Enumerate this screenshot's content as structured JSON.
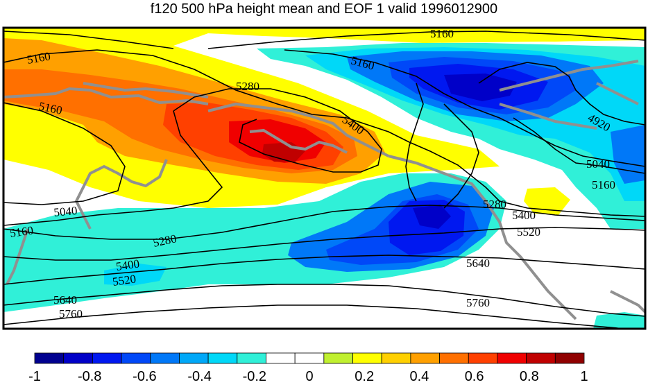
{
  "title": "f120 500 hPa height mean and EOF 1 valid 1996012900",
  "contour_labels": [
    "5160",
    "5160",
    "5160",
    "5160",
    "5160",
    "5160",
    "5280",
    "5280",
    "5280",
    "5400",
    "5400",
    "5400",
    "5520",
    "5520",
    "5640",
    "5640",
    "4920",
    "5040",
    "5040",
    "5760",
    "5760"
  ],
  "colorbar": {
    "ticks": [
      "-1",
      "-0.8",
      "-0.6",
      "-0.4",
      "-0.2",
      "0",
      "0.2",
      "0.4",
      "0.6",
      "0.8",
      "1"
    ],
    "colors": [
      "#00008f",
      "#0000c8",
      "#0018f0",
      "#0048f8",
      "#0078f8",
      "#00a8f8",
      "#00d8f8",
      "#30f0d8",
      "#ffffff",
      "#ffffff",
      "#c0f030",
      "#ffff00",
      "#ffd000",
      "#ffa000",
      "#ff7000",
      "#ff4000",
      "#f00000",
      "#c00000",
      "#900000"
    ]
  }
}
